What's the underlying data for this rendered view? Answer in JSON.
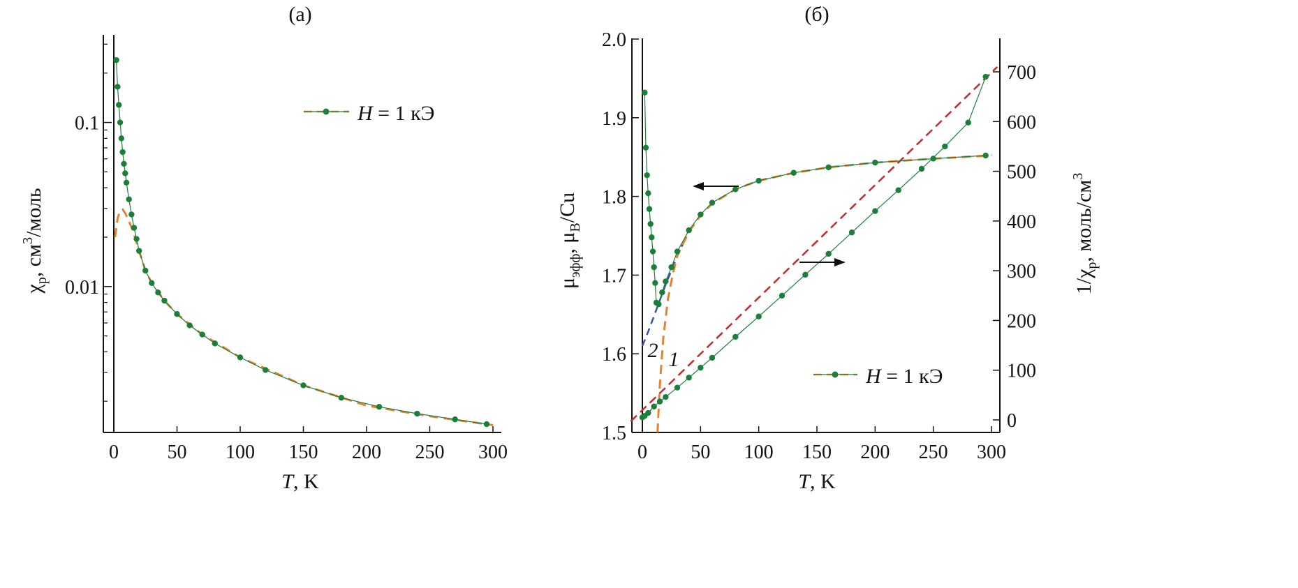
{
  "colors": {
    "data": "#1b7f3b",
    "fit1": "#e8822a",
    "fit2": "#3a4fb0",
    "linear": "#c8282c",
    "axis": "#111111"
  },
  "chart_data": [
    {
      "panel": "(a)",
      "type": "scatter",
      "xlabel": "T, K",
      "ylabel": "χp, см3/моль",
      "yscale": "log",
      "xlim": [
        -5,
        305
      ],
      "ylim": [
        0.00129,
        0.31
      ],
      "x_ticks": [
        0,
        50,
        100,
        150,
        200,
        250,
        300
      ],
      "y_ticks": [
        {
          "v": 0.1,
          "label": "0.1"
        },
        {
          "v": 0.01,
          "label": "0.01"
        }
      ],
      "legend": {
        "text": "H = 1 кЭ",
        "placement": "top-right"
      },
      "grid": false,
      "series": [
        {
          "role": "data",
          "marker": "circle",
          "legend_label": "H = 1 кЭ",
          "x": [
            2,
            3,
            4,
            5,
            6,
            7,
            8,
            9,
            10,
            12,
            14,
            16,
            18,
            20,
            25,
            30,
            35,
            40,
            50,
            60,
            70,
            80,
            100,
            120,
            150,
            180,
            210,
            240,
            270,
            295
          ],
          "y": [
            0.24,
            0.165,
            0.128,
            0.1,
            0.08,
            0.066,
            0.056,
            0.049,
            0.043,
            0.034,
            0.0275,
            0.0228,
            0.0195,
            0.0165,
            0.0125,
            0.0105,
            0.0092,
            0.0082,
            0.0068,
            0.0058,
            0.0051,
            0.0045,
            0.0037,
            0.0031,
            0.0025,
            0.0021,
            0.00185,
            0.00168,
            0.00155,
            0.00145
          ]
        },
        {
          "role": "fit",
          "style": "dashed",
          "x": [
            1,
            3,
            5,
            7,
            9,
            12,
            15,
            20,
            25,
            30,
            40,
            50,
            70,
            100,
            150,
            200,
            250,
            300
          ],
          "y": [
            0.02,
            0.026,
            0.029,
            0.0295,
            0.028,
            0.025,
            0.022,
            0.0165,
            0.0125,
            0.0105,
            0.0082,
            0.0068,
            0.0051,
            0.0037,
            0.0025,
            0.00188,
            0.00162,
            0.00143
          ]
        }
      ]
    },
    {
      "panel": "(б)",
      "type": "scatter",
      "xlabel": "T, K",
      "ylabel_left": "μэфф, μB/Cu",
      "ylabel_right": "1/χp, моль/см3",
      "xlim": [
        -10,
        305
      ],
      "ylim_left": [
        1.5,
        2.0
      ],
      "ylim_right": [
        -20,
        730
      ],
      "x_ticks": [
        0,
        50,
        100,
        150,
        200,
        250,
        300
      ],
      "y_ticks_left": [
        "1.5",
        "1.6",
        "1.7",
        "1.8",
        "1.9",
        "2.0"
      ],
      "y_ticks_right": [
        0,
        100,
        200,
        300,
        400,
        500,
        600,
        700
      ],
      "legend": {
        "text": "H = 1 кЭ",
        "placement": "bottom-right"
      },
      "annotations": [
        "1",
        "2"
      ],
      "grid": false,
      "series": [
        {
          "role": "mu_eff_data",
          "axis": "left",
          "marker": "circle",
          "legend_label": "H = 1 кЭ",
          "x": [
            2,
            3,
            4,
            5,
            6,
            7,
            8,
            9,
            10,
            11,
            12,
            14,
            17,
            20,
            25,
            30,
            40,
            50,
            60,
            80,
            100,
            130,
            160,
            200,
            250,
            295
          ],
          "y": [
            1.932,
            1.862,
            1.827,
            1.804,
            1.784,
            1.765,
            1.748,
            1.73,
            1.71,
            1.69,
            1.665,
            1.663,
            1.678,
            1.692,
            1.71,
            1.73,
            1.757,
            1.777,
            1.792,
            1.809,
            1.82,
            1.83,
            1.837,
            1.843,
            1.848,
            1.852
          ]
        },
        {
          "role": "fit_1",
          "axis": "left",
          "style": "dashed",
          "x": [
            13,
            15,
            18,
            22,
            26,
            30,
            40,
            50,
            60,
            80,
            100,
            130,
            160,
            200,
            250,
            300
          ],
          "y": [
            1.5,
            1.56,
            1.62,
            1.67,
            1.7,
            1.725,
            1.755,
            1.776,
            1.791,
            1.809,
            1.82,
            1.83,
            1.837,
            1.843,
            1.848,
            1.852
          ]
        },
        {
          "role": "fit_2",
          "axis": "left",
          "style": "dashed",
          "x": [
            0,
            5,
            10,
            15,
            20,
            25,
            30,
            35
          ],
          "y": [
            1.61,
            1.628,
            1.648,
            1.668,
            1.688,
            1.706,
            1.724,
            1.74
          ]
        },
        {
          "role": "inverse_chi_data",
          "axis": "right",
          "marker": "circle",
          "x": [
            0,
            2,
            5,
            10,
            15,
            20,
            30,
            40,
            50,
            60,
            80,
            100,
            120,
            140,
            160,
            180,
            200,
            220,
            240,
            260,
            280,
            295
          ],
          "y": [
            5,
            8,
            14,
            27,
            37,
            46,
            65,
            85,
            105,
            125,
            167,
            208,
            250,
            292,
            334,
            377,
            420,
            462,
            505,
            550,
            598,
            690
          ]
        },
        {
          "role": "inverse_chi_linear_fit",
          "axis": "right",
          "style": "dashed",
          "x": [
            -10,
            305
          ],
          "y": [
            -3,
            710
          ]
        }
      ]
    }
  ]
}
